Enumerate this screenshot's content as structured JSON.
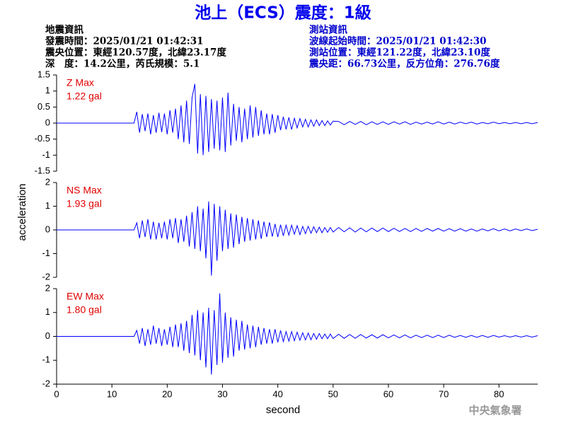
{
  "header": {
    "title": "池上（ECS）震度：1級",
    "left": [
      "地震資訊",
      "發震時間：2025/01/21 01:42:31",
      "震央位置：東經120.57度，北緯23.17度",
      "深　度：14.2公里，芮氏規模：5.1"
    ],
    "right": [
      "測站資訊",
      "波線起始時間：2025/01/21 01:42:30",
      "測站位置：東經121.22度，北緯23.10度",
      "震央距：66.73公里，反方位角：276.76度"
    ],
    "footer": "中央氣象署"
  },
  "chart_data": [
    {
      "type": "line",
      "color": "#0000ff",
      "annotation": "Z Max",
      "max_label": "1.22 gal",
      "annotation_color": "#e00000",
      "xlim": [
        0,
        87
      ],
      "ylim": [
        -1.5,
        1.5
      ],
      "yticks": [
        1.5,
        1,
        0.5,
        0,
        -0.5,
        -1,
        -1.5
      ],
      "x": [
        0,
        14,
        14.5,
        15,
        15.5,
        16,
        16.5,
        17,
        17.5,
        18,
        18.5,
        19,
        19.5,
        20,
        20.5,
        21,
        21.5,
        22,
        22.5,
        23,
        23.5,
        24,
        24.5,
        25,
        25.5,
        26,
        26.5,
        27,
        27.5,
        28,
        28.5,
        29,
        29.5,
        30,
        30.5,
        31,
        31.5,
        32,
        32.5,
        33,
        33.5,
        34,
        34.5,
        35,
        35.5,
        36,
        36.5,
        37,
        37.5,
        38,
        38.5,
        39,
        39.5,
        40,
        40.5,
        41,
        41.5,
        42,
        42.5,
        43,
        43.5,
        44,
        44.5,
        45,
        45.5,
        46,
        46.5,
        47,
        47.5,
        48,
        48.5,
        49,
        49.5,
        50,
        51,
        52,
        53,
        54,
        55,
        56,
        57,
        58,
        59,
        60,
        61,
        62,
        63,
        64,
        65,
        66,
        67,
        68,
        69,
        70,
        71,
        72,
        73,
        74,
        75,
        76,
        77,
        78,
        79,
        80,
        81,
        82,
        83,
        84,
        85,
        86,
        87
      ],
      "values": [
        0,
        0,
        0.35,
        -0.3,
        0.28,
        -0.25,
        0.3,
        -0.35,
        0.25,
        -0.3,
        0.32,
        -0.28,
        0.3,
        -0.35,
        0.4,
        -0.3,
        0.45,
        -0.5,
        0.55,
        -0.6,
        0.7,
        -0.65,
        0.8,
        1.22,
        -0.95,
        0.9,
        -1.0,
        0.85,
        -0.9,
        0.75,
        -0.8,
        0.7,
        -0.85,
        0.8,
        -0.9,
        0.95,
        -0.7,
        0.6,
        -0.55,
        0.5,
        -0.6,
        0.45,
        -0.5,
        0.55,
        -0.45,
        0.5,
        -0.4,
        0.4,
        -0.35,
        0.3,
        -0.35,
        0.28,
        -0.3,
        0.25,
        -0.22,
        0.2,
        -0.2,
        0.18,
        -0.2,
        0.15,
        -0.15,
        0.14,
        -0.12,
        0.12,
        -0.12,
        0.1,
        -0.1,
        0.1,
        -0.08,
        0.08,
        -0.08,
        0.07,
        -0.06,
        0.06,
        0.05,
        -0.05,
        0.05,
        -0.04,
        0.05,
        -0.05,
        0.04,
        -0.04,
        0.04,
        -0.04,
        0.04,
        -0.03,
        0.04,
        -0.04,
        0.03,
        -0.03,
        0.03,
        -0.03,
        0.04,
        -0.03,
        0.03,
        -0.03,
        0.03,
        -0.02,
        0.03,
        -0.03,
        0.02,
        -0.02,
        0.03,
        -0.02,
        0.02,
        -0.02,
        0.02,
        -0.02,
        0.02,
        -0.02,
        0.02
      ]
    },
    {
      "type": "line",
      "color": "#0000ff",
      "annotation": "NS Max",
      "max_label": "1.93 gal",
      "annotation_color": "#e00000",
      "ylabel": "acceleration",
      "xlim": [
        0,
        87
      ],
      "ylim": [
        -2,
        2
      ],
      "yticks": [
        2,
        1,
        0,
        -1,
        -2
      ],
      "x": [
        0,
        14,
        14.5,
        15,
        15.5,
        16,
        16.5,
        17,
        17.5,
        18,
        18.5,
        19,
        19.5,
        20,
        20.5,
        21,
        21.5,
        22,
        22.5,
        23,
        23.5,
        24,
        24.5,
        25,
        25.5,
        26,
        26.5,
        27,
        27.5,
        28,
        28.5,
        29,
        29.5,
        30,
        30.5,
        31,
        31.5,
        32,
        32.5,
        33,
        33.5,
        34,
        34.5,
        35,
        35.5,
        36,
        36.5,
        37,
        37.5,
        38,
        38.5,
        39,
        39.5,
        40,
        40.5,
        41,
        41.5,
        42,
        42.5,
        43,
        43.5,
        44,
        44.5,
        45,
        45.5,
        46,
        46.5,
        47,
        47.5,
        48,
        48.5,
        49,
        49.5,
        50,
        51,
        52,
        53,
        54,
        55,
        56,
        57,
        58,
        59,
        60,
        61,
        62,
        63,
        64,
        65,
        66,
        67,
        68,
        69,
        70,
        71,
        72,
        73,
        74,
        75,
        76,
        77,
        78,
        79,
        80,
        81,
        82,
        83,
        84,
        85,
        86,
        87
      ],
      "values": [
        0,
        0,
        0.3,
        -0.35,
        0.4,
        -0.3,
        0.45,
        -0.4,
        0.35,
        -0.4,
        0.3,
        -0.35,
        0.35,
        -0.4,
        0.45,
        -0.35,
        0.5,
        -0.55,
        0.45,
        -0.5,
        0.6,
        -0.7,
        0.75,
        -0.8,
        1.0,
        -0.9,
        0.9,
        -1.2,
        1.2,
        -1.93,
        1.1,
        -1.3,
        1.0,
        -0.9,
        0.85,
        -0.8,
        0.7,
        -0.75,
        0.65,
        -0.6,
        0.55,
        -0.5,
        0.5,
        -0.45,
        0.45,
        -0.4,
        0.4,
        -0.38,
        0.35,
        -0.3,
        0.32,
        -0.28,
        0.25,
        -0.3,
        0.22,
        -0.25,
        0.2,
        -0.22,
        0.2,
        -0.18,
        0.18,
        -0.2,
        0.15,
        -0.16,
        0.15,
        -0.14,
        0.13,
        -0.12,
        0.12,
        -0.12,
        0.1,
        -0.1,
        0.1,
        -0.09,
        0.1,
        -0.08,
        0.09,
        -0.09,
        0.08,
        -0.08,
        0.08,
        -0.07,
        0.08,
        -0.07,
        0.07,
        -0.07,
        0.06,
        -0.07,
        0.06,
        -0.06,
        0.06,
        -0.05,
        0.06,
        -0.05,
        0.05,
        -0.05,
        0.05,
        -0.05,
        0.04,
        -0.05,
        0.04,
        -0.04,
        0.05,
        -0.04,
        0.04,
        -0.04,
        0.04,
        -0.03,
        0.04,
        -0.03,
        0.03
      ]
    },
    {
      "type": "line",
      "color": "#0000ff",
      "annotation": "EW Max",
      "max_label": "1.80 gal",
      "annotation_color": "#e00000",
      "xlabel": "second",
      "xlim": [
        0,
        87
      ],
      "ylim": [
        -2,
        2
      ],
      "yticks": [
        2,
        1,
        0,
        -1,
        -2
      ],
      "xticks": [
        0,
        10,
        20,
        30,
        40,
        50,
        60,
        70,
        80
      ],
      "x": [
        0,
        14,
        14.5,
        15,
        15.5,
        16,
        16.5,
        17,
        17.5,
        18,
        18.5,
        19,
        19.5,
        20,
        20.5,
        21,
        21.5,
        22,
        22.5,
        23,
        23.5,
        24,
        24.5,
        25,
        25.5,
        26,
        26.5,
        27,
        27.5,
        28,
        28.5,
        29,
        29.5,
        30,
        30.5,
        31,
        31.5,
        32,
        32.5,
        33,
        33.5,
        34,
        34.5,
        35,
        35.5,
        36,
        36.5,
        37,
        37.5,
        38,
        38.5,
        39,
        39.5,
        40,
        40.5,
        41,
        41.5,
        42,
        42.5,
        43,
        43.5,
        44,
        44.5,
        45,
        45.5,
        46,
        46.5,
        47,
        47.5,
        48,
        48.5,
        49,
        49.5,
        50,
        51,
        52,
        53,
        54,
        55,
        56,
        57,
        58,
        59,
        60,
        61,
        62,
        63,
        64,
        65,
        66,
        67,
        68,
        69,
        70,
        71,
        72,
        73,
        74,
        75,
        76,
        77,
        78,
        79,
        80,
        81,
        82,
        83,
        84,
        85,
        86,
        87
      ],
      "values": [
        0,
        0,
        0.25,
        -0.3,
        0.35,
        -0.4,
        0.3,
        -0.35,
        0.45,
        -0.3,
        0.35,
        -0.4,
        0.3,
        -0.35,
        0.4,
        -0.45,
        0.5,
        -0.45,
        0.55,
        -0.6,
        0.65,
        -0.7,
        0.9,
        -0.8,
        1.1,
        -1.0,
        1.0,
        -1.3,
        1.2,
        -1.6,
        1.1,
        -1.2,
        1.8,
        -1.1,
        1.0,
        -0.9,
        0.8,
        -0.85,
        0.7,
        -0.6,
        0.65,
        -0.55,
        0.5,
        -0.5,
        0.45,
        -0.45,
        0.4,
        -0.35,
        0.35,
        -0.3,
        0.3,
        -0.3,
        0.3,
        -0.25,
        0.25,
        -0.22,
        0.2,
        -0.2,
        0.2,
        -0.18,
        0.18,
        -0.16,
        0.15,
        -0.15,
        0.14,
        -0.14,
        0.12,
        -0.12,
        0.12,
        -0.1,
        0.1,
        -0.1,
        0.1,
        -0.09,
        0.09,
        -0.08,
        0.08,
        -0.08,
        0.08,
        -0.07,
        0.07,
        -0.07,
        0.07,
        -0.06,
        0.06,
        -0.06,
        0.06,
        -0.06,
        0.05,
        -0.05,
        0.05,
        -0.05,
        0.05,
        -0.05,
        0.05,
        -0.04,
        0.04,
        -0.04,
        0.04,
        -0.04,
        0.04,
        -0.04,
        0.04,
        -0.03,
        0.03,
        -0.03,
        0.03,
        -0.03,
        0.03,
        -0.03,
        0.03
      ]
    }
  ]
}
